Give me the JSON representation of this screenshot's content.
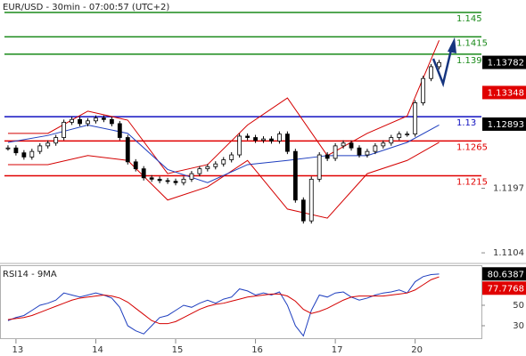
{
  "chart_data": [
    {
      "type": "candlestick",
      "title": "EUR/USD - 30min - 07:00:57 (UTC+2)",
      "x": [
        -0.1,
        0,
        0.1,
        0.2,
        0.3,
        0.4,
        0.5,
        0.6,
        0.7,
        0.8,
        0.9,
        1,
        1.1,
        1.2,
        1.3,
        1.4,
        1.5,
        1.6,
        1.7,
        1.8,
        1.9,
        2,
        2.1,
        2.2,
        2.3,
        2.4,
        2.5,
        2.6,
        2.7,
        2.8,
        2.9,
        3,
        3.1,
        3.2,
        3.3,
        3.4,
        3.5,
        3.6,
        3.7,
        3.8,
        3.9,
        4,
        4.1,
        4.2,
        4.3,
        4.4,
        4.5,
        4.6,
        4.7,
        4.8,
        4.9,
        5,
        5.1,
        5.2,
        5.3
      ],
      "close": [
        1.1255,
        1.1248,
        1.1242,
        1.125,
        1.1258,
        1.1262,
        1.127,
        1.1292,
        1.1296,
        1.129,
        1.1294,
        1.1298,
        1.1296,
        1.129,
        1.127,
        1.1235,
        1.1225,
        1.1212,
        1.121,
        1.1208,
        1.1207,
        1.1205,
        1.121,
        1.1218,
        1.1225,
        1.1228,
        1.1232,
        1.1238,
        1.1245,
        1.1272,
        1.127,
        1.1266,
        1.1268,
        1.1265,
        1.1275,
        1.125,
        1.118,
        1.115,
        1.121,
        1.1245,
        1.124,
        1.1258,
        1.1262,
        1.1255,
        1.1245,
        1.125,
        1.1258,
        1.1262,
        1.127,
        1.1275,
        1.1275,
        1.132,
        1.1355,
        1.1372,
        1.1378
      ],
      "color": "#000000",
      "bands": {
        "x": [
          -0.1,
          0.4,
          0.9,
          1.4,
          1.9,
          2.4,
          2.9,
          3.4,
          3.9,
          4.4,
          4.9,
          5.3
        ],
        "upper": [
          1.1276,
          1.1276,
          1.1308,
          1.1295,
          1.1218,
          1.1231,
          1.1288,
          1.1327,
          1.1244,
          1.1276,
          1.1301,
          1.141
        ],
        "middle": [
          1.1263,
          1.1273,
          1.1288,
          1.1276,
          1.1224,
          1.1205,
          1.1231,
          1.1237,
          1.1244,
          1.1244,
          1.1263,
          1.1288
        ],
        "lower": [
          1.1231,
          1.1231,
          1.1244,
          1.1237,
          1.118,
          1.1199,
          1.1237,
          1.1167,
          1.1154,
          1.1218,
          1.1237,
          1.1263
        ],
        "band_color": "#d40000",
        "middle_color": "#1f3fbf"
      },
      "levels": [
        {
          "value": 1.145,
          "color": "#1a8a1a"
        },
        {
          "value": 1.1415,
          "color": "#1a8a1a"
        },
        {
          "value": 1.139,
          "color": "#1a8a1a"
        },
        {
          "value": 1.13,
          "color": "#1010c0"
        },
        {
          "value": 1.1265,
          "color": "#e00000"
        },
        {
          "value": 1.1215,
          "color": "#e00000"
        }
      ],
      "price_tags": [
        {
          "value": 1.13782,
          "color": "#000000"
        },
        {
          "value": 1.13348,
          "color": "#e00000"
        },
        {
          "value": 1.12893,
          "color": "#000000"
        }
      ],
      "xlim": [
        -0.2,
        5.83
      ],
      "ylim": [
        1.109,
        1.1468
      ],
      "yticks": [
        1.1197,
        1.1104
      ]
    },
    {
      "type": "line",
      "title": "RSI14 - 9MA",
      "x": [
        -0.1,
        0,
        0.1,
        0.2,
        0.3,
        0.4,
        0.5,
        0.6,
        0.7,
        0.8,
        0.9,
        1,
        1.1,
        1.2,
        1.3,
        1.4,
        1.5,
        1.6,
        1.7,
        1.8,
        1.9,
        2,
        2.1,
        2.2,
        2.3,
        2.4,
        2.5,
        2.6,
        2.7,
        2.8,
        2.9,
        3,
        3.1,
        3.2,
        3.3,
        3.4,
        3.5,
        3.6,
        3.7,
        3.8,
        3.9,
        4,
        4.1,
        4.2,
        4.3,
        4.4,
        4.5,
        4.6,
        4.7,
        4.8,
        4.9,
        5,
        5.1,
        5.2,
        5.3
      ],
      "series": [
        {
          "color": "#1f3fbf",
          "values": [
            35,
            38,
            40,
            45,
            50,
            52,
            55,
            62,
            60,
            58,
            60,
            62,
            60,
            57,
            48,
            30,
            25,
            22,
            30,
            38,
            40,
            45,
            50,
            48,
            52,
            55,
            52,
            56,
            58,
            66,
            64,
            60,
            62,
            60,
            63,
            50,
            30,
            20,
            45,
            60,
            58,
            62,
            63,
            58,
            55,
            57,
            60,
            62,
            63,
            65,
            62,
            73,
            78,
            80,
            80.6
          ]
        },
        {
          "color": "#d40000",
          "values": [
            36,
            37,
            38,
            40,
            43,
            46,
            49,
            52,
            55,
            57,
            58,
            59,
            60,
            59,
            57,
            53,
            47,
            41,
            35,
            32,
            32,
            34,
            38,
            42,
            46,
            49,
            51,
            52,
            54,
            56,
            58,
            59,
            60,
            61,
            61,
            59,
            54,
            46,
            42,
            44,
            47,
            51,
            55,
            58,
            59,
            59,
            59,
            59,
            60,
            61,
            62,
            65,
            70,
            75,
            77.8
          ]
        }
      ],
      "value_tags": [
        {
          "value": 80.6387,
          "color": "#000000"
        },
        {
          "value": 77.7768,
          "color": "#e00000"
        }
      ],
      "xlim": [
        -0.2,
        5.83
      ],
      "ylim": [
        17.8,
        87.4
      ],
      "yticks": [
        50,
        30
      ],
      "xticks": [
        {
          "value": 0,
          "label": "13"
        },
        {
          "value": 1,
          "label": "14"
        },
        {
          "value": 2,
          "label": "15"
        },
        {
          "value": 3,
          "label": "16"
        },
        {
          "value": 4,
          "label": "17"
        },
        {
          "value": 5,
          "label": "20"
        }
      ]
    }
  ]
}
